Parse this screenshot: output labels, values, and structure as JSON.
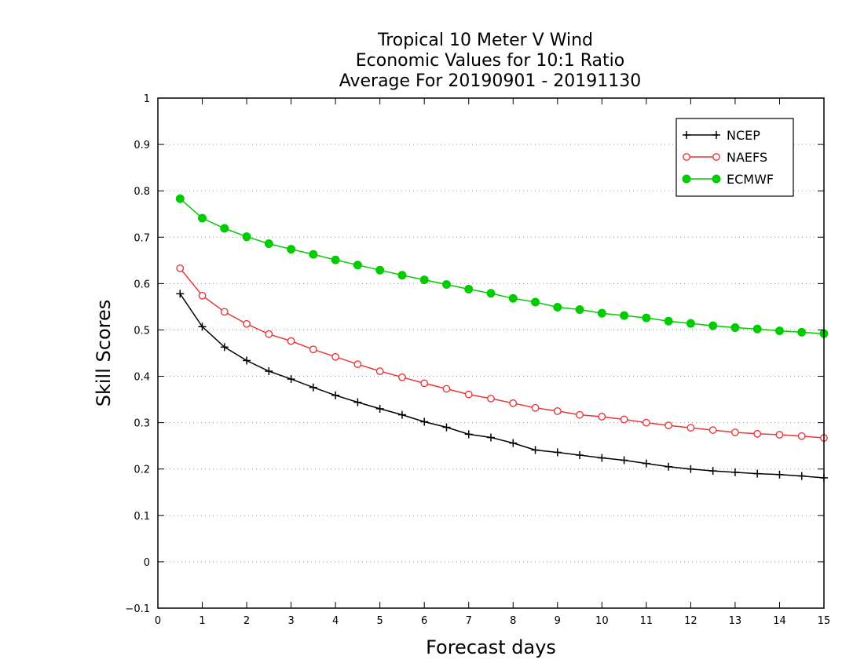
{
  "chart_data": {
    "type": "line",
    "title": [
      "Tropical 10 Meter V Wind",
      "Economic Values for 10:1 Ratio",
      "Average For 20190901 - 20191130"
    ],
    "xlabel": "Forecast days",
    "ylabel": "Skill Scores",
    "xlim": [
      0,
      15
    ],
    "ylim": [
      -0.1,
      1
    ],
    "xticks": [
      0,
      1,
      2,
      3,
      4,
      5,
      6,
      7,
      8,
      9,
      10,
      11,
      12,
      13,
      14,
      15
    ],
    "yticks": [
      -0.1,
      0,
      0.1,
      0.2,
      0.3,
      0.4,
      0.5,
      0.6,
      0.7,
      0.8,
      0.9,
      1
    ],
    "ytick_labels": [
      "−0.1",
      "0",
      "0.1",
      "0.2",
      "0.3",
      "0.4",
      "0.5",
      "0.6",
      "0.7",
      "0.8",
      "0.9",
      "1"
    ],
    "grid": "horizontal dotted",
    "legend_position": "top-right",
    "x": [
      0.5,
      1,
      1.5,
      2,
      2.5,
      3,
      3.5,
      4,
      4.5,
      5,
      5.5,
      6,
      6.5,
      7,
      7.5,
      8,
      8.5,
      9,
      9.5,
      10,
      10.5,
      11,
      11.5,
      12,
      12.5,
      13,
      13.5,
      14,
      14.5,
      15
    ],
    "series": [
      {
        "name": "NCEP",
        "color": "#000000",
        "marker": "plus",
        "values": [
          0.578,
          0.507,
          0.463,
          0.434,
          0.411,
          0.394,
          0.376,
          0.359,
          0.344,
          0.33,
          0.317,
          0.302,
          0.29,
          0.275,
          0.268,
          0.256,
          0.241,
          0.236,
          0.23,
          0.224,
          0.219,
          0.212,
          0.205,
          0.2,
          0.196,
          0.193,
          0.19,
          0.188,
          0.185,
          0.181
        ]
      },
      {
        "name": "NAEFS",
        "color": "#e8383b",
        "marker": "open-circle",
        "values": [
          0.633,
          0.574,
          0.539,
          0.513,
          0.491,
          0.476,
          0.458,
          0.442,
          0.426,
          0.411,
          0.398,
          0.385,
          0.373,
          0.361,
          0.352,
          0.342,
          0.332,
          0.325,
          0.317,
          0.313,
          0.307,
          0.3,
          0.294,
          0.289,
          0.284,
          0.279,
          0.276,
          0.274,
          0.271,
          0.267
        ]
      },
      {
        "name": "ECMWF",
        "color": "#00cc00",
        "marker": "filled-circle",
        "values": [
          0.783,
          0.741,
          0.719,
          0.701,
          0.686,
          0.674,
          0.663,
          0.651,
          0.64,
          0.629,
          0.618,
          0.608,
          0.598,
          0.588,
          0.579,
          0.568,
          0.56,
          0.549,
          0.544,
          0.536,
          0.531,
          0.526,
          0.519,
          0.514,
          0.509,
          0.505,
          0.502,
          0.498,
          0.495,
          0.492
        ]
      }
    ]
  }
}
